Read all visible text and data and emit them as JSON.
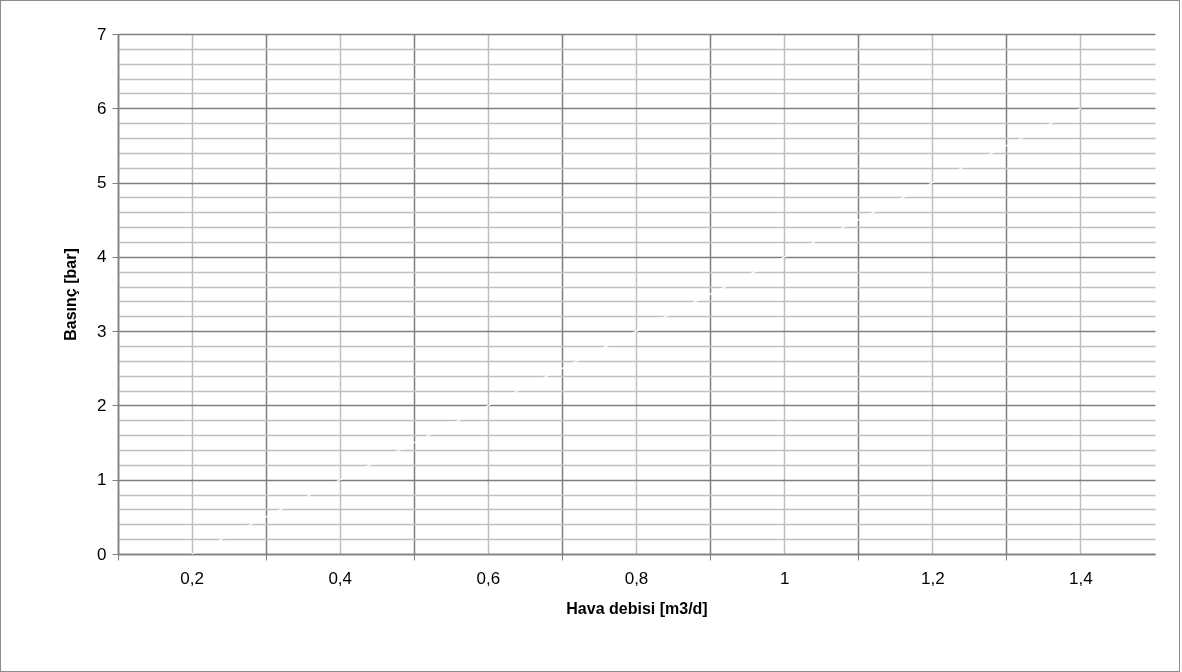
{
  "chart_data": {
    "type": "line",
    "xlabel": "Hava debisi [m3/d]",
    "ylabel": "Basınç [bar]",
    "categories": [
      "0,2",
      "0,4",
      "0,6",
      "0,8",
      "1",
      "1,2",
      "1,4"
    ],
    "series": [
      {
        "color": "#ffffff",
        "values": [
          0,
          1,
          2,
          3,
          4,
          5,
          6
        ]
      }
    ],
    "ylim": [
      0,
      7
    ],
    "yticks": [
      0,
      {
        "value": 0.2,
        "label": null
      },
      {
        "value": 0.4,
        "label": null
      },
      {
        "value": 0.6,
        "label": null
      },
      {
        "value": 0.8,
        "label": null
      },
      1,
      {
        "value": 1.2,
        "label": null
      },
      {
        "value": 1.4,
        "label": null
      },
      {
        "value": 1.6,
        "label": null
      },
      {
        "value": 1.8,
        "label": null
      },
      2,
      {
        "value": 2.2,
        "label": null
      },
      {
        "value": 2.4,
        "label": null
      },
      {
        "value": 2.6,
        "label": null
      },
      {
        "value": 2.8,
        "label": null
      },
      3,
      {
        "value": 3.2,
        "label": null
      },
      {
        "value": 3.4,
        "label": null
      },
      {
        "value": 3.6,
        "label": null
      },
      {
        "value": 3.8,
        "label": null
      },
      4,
      {
        "value": 4.2,
        "label": null
      },
      {
        "value": 4.4,
        "label": null
      },
      {
        "value": 4.6,
        "label": null
      },
      {
        "value": 4.8,
        "label": null
      },
      5,
      {
        "value": 5.2,
        "label": null
      },
      {
        "value": 5.4,
        "label": null
      },
      {
        "value": 5.6,
        "label": null
      },
      {
        "value": 5.8,
        "label": null
      },
      6,
      {
        "value": 6.2,
        "label": null
      },
      {
        "value": 6.4,
        "label": null
      },
      {
        "value": 6.6,
        "label": null
      },
      {
        "value": 6.8,
        "label": null
      },
      7
    ],
    "grid": true
  }
}
